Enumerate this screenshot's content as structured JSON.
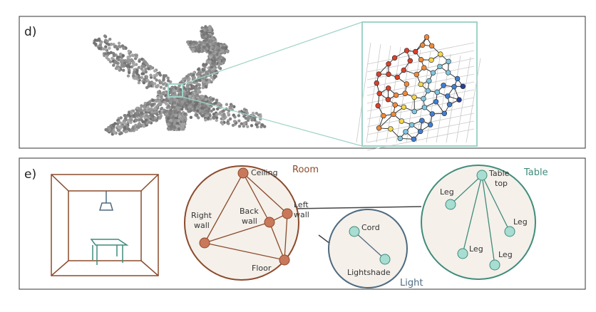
{
  "panels": {
    "d": {
      "label": "d)"
    },
    "e": {
      "label": "e)",
      "room": {
        "title": "Room",
        "nodes": {
          "ceiling": "Ceiling",
          "back_wall_1": "Back",
          "back_wall_2": "wall",
          "left_wall_1": "Left",
          "left_wall_2": "wall",
          "right_wall_1": "Right",
          "right_wall_2": "wall",
          "floor": "Floor"
        }
      },
      "light": {
        "title": "Light",
        "nodes": {
          "cord": "Cord",
          "lightshade": "Lightshade"
        }
      },
      "table": {
        "title": "Table",
        "nodes": {
          "top_1": "Table",
          "top_2": "top",
          "leg_a": "Leg",
          "leg_b": "Leg",
          "leg_c": "Leg",
          "leg_d": "Leg"
        }
      }
    }
  },
  "colors": {
    "room": "#8b4a2b",
    "room_node": "#c9785a",
    "light": "#4e6a80",
    "table": "#3f8c7c",
    "teal_node": "#a8ddd2",
    "bg_fill": "#f5f0ea",
    "zoom_box": "#9fd3c7",
    "plane": "#8a8a8a"
  }
}
